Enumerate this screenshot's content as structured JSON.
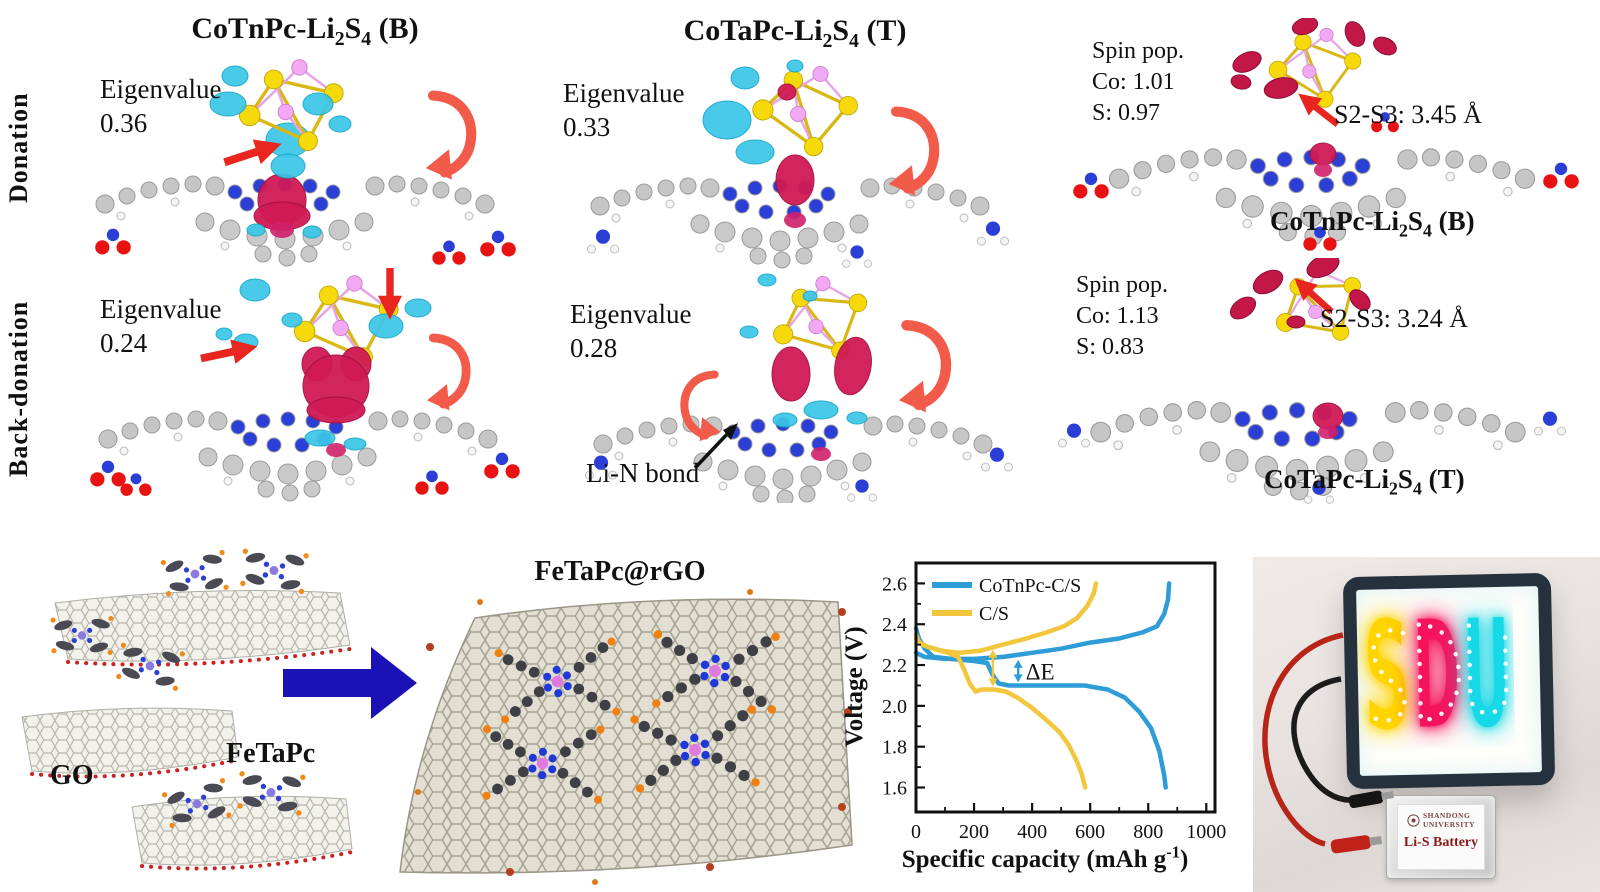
{
  "figure": {
    "rows": {
      "donation": "Donation",
      "back_donation": "Back-donation"
    },
    "panels": {
      "col1_title": "CoTnPc-Li~2~S~4~ (B)",
      "col2_title": "CoTaPc-Li~2~S~4~ (T)",
      "d1": {
        "eigen_label": "Eigenvalue",
        "eigen_value": "0.36"
      },
      "d2": {
        "eigen_label": "Eigenvalue",
        "eigen_value": "0.33"
      },
      "b1": {
        "eigen_label": "Eigenvalue",
        "eigen_value": "0.24"
      },
      "b2": {
        "eigen_label": "Eigenvalue",
        "eigen_value": "0.28",
        "bond_label": "Li-N bond"
      },
      "r1": {
        "spin_title": "Spin pop.",
        "spin_co": "Co: 1.01",
        "spin_s": "S: 0.97",
        "distance": "S2-S3: 3.45 Å",
        "label": "CoTnPc-Li~2~S~4~ (B)"
      },
      "r2": {
        "spin_title": "Spin pop.",
        "spin_co": "Co: 1.13",
        "spin_s": "S: 0.83",
        "distance": "S2-S3: 3.24 Å",
        "label": "CoTaPc-Li~2~S~4~ (T)"
      }
    },
    "synthesis": {
      "go_label": "GO",
      "molecule_label": "FeTaPc",
      "product_label": "FeTaPc@rGO"
    },
    "photo": {
      "led_letters": [
        "S",
        "D",
        "U"
      ],
      "led_colors": [
        "#ffd400",
        "#f5135e",
        "#16d8e6"
      ],
      "battery_univ_line1": "SHANDONG",
      "battery_univ_line2": "UNIVERSITY",
      "battery_label": "Li-S Battery"
    }
  },
  "chart_data": {
    "type": "line",
    "title": "",
    "xlabel": "Specific capacity (mAh g^-1^)",
    "ylabel": "Voltage (V)",
    "xlim": [
      0,
      1030
    ],
    "ylim": [
      1.48,
      2.7
    ],
    "x_ticks": [
      0,
      200,
      400,
      600,
      800,
      1000
    ],
    "y_ticks": [
      1.6,
      1.8,
      2.0,
      2.2,
      2.4,
      2.6
    ],
    "grid": false,
    "legend_position": "top-left",
    "series": [
      {
        "name": "CoTnPc-C/S",
        "color": "#2e9cd6",
        "branches": {
          "charge": [
            [
              0,
              2.26
            ],
            [
              30,
              2.24
            ],
            [
              100,
              2.23
            ],
            [
              200,
              2.23
            ],
            [
              300,
              2.24
            ],
            [
              400,
              2.26
            ],
            [
              500,
              2.28
            ],
            [
              600,
              2.31
            ],
            [
              700,
              2.33
            ],
            [
              780,
              2.36
            ],
            [
              830,
              2.39
            ],
            [
              855,
              2.45
            ],
            [
              868,
              2.52
            ],
            [
              872,
              2.6
            ]
          ],
          "discharge": [
            [
              0,
              2.38
            ],
            [
              10,
              2.33
            ],
            [
              30,
              2.28
            ],
            [
              60,
              2.24
            ],
            [
              120,
              2.23
            ],
            [
              200,
              2.22
            ],
            [
              245,
              2.21
            ],
            [
              265,
              2.15
            ],
            [
              285,
              2.11
            ],
            [
              320,
              2.1
            ],
            [
              450,
              2.1
            ],
            [
              580,
              2.1
            ],
            [
              660,
              2.08
            ],
            [
              720,
              2.04
            ],
            [
              770,
              1.97
            ],
            [
              810,
              1.89
            ],
            [
              838,
              1.78
            ],
            [
              855,
              1.66
            ],
            [
              860,
              1.6
            ]
          ]
        }
      },
      {
        "name": "C/S",
        "color": "#f2c63d",
        "branches": {
          "charge": [
            [
              0,
              2.35
            ],
            [
              10,
              2.31
            ],
            [
              40,
              2.29
            ],
            [
              90,
              2.27
            ],
            [
              150,
              2.26
            ],
            [
              220,
              2.27
            ],
            [
              300,
              2.3
            ],
            [
              380,
              2.33
            ],
            [
              450,
              2.36
            ],
            [
              510,
              2.39
            ],
            [
              555,
              2.43
            ],
            [
              590,
              2.49
            ],
            [
              612,
              2.55
            ],
            [
              620,
              2.6
            ]
          ],
          "discharge": [
            [
              0,
              2.33
            ],
            [
              20,
              2.3
            ],
            [
              60,
              2.28
            ],
            [
              110,
              2.26
            ],
            [
              145,
              2.24
            ],
            [
              165,
              2.18
            ],
            [
              185,
              2.11
            ],
            [
              205,
              2.07
            ],
            [
              225,
              2.08
            ],
            [
              270,
              2.08
            ],
            [
              310,
              2.07
            ],
            [
              350,
              2.04
            ],
            [
              400,
              1.99
            ],
            [
              450,
              1.93
            ],
            [
              495,
              1.87
            ],
            [
              525,
              1.81
            ],
            [
              550,
              1.74
            ],
            [
              570,
              1.67
            ],
            [
              583,
              1.6
            ]
          ]
        }
      }
    ],
    "annotation": {
      "label": "ΔE",
      "label_pos": [
        378,
        2.13
      ],
      "arrows": [
        {
          "x": 265,
          "y_from": 2.28,
          "y_to": 2.09,
          "color": "#f2c63d"
        },
        {
          "x": 352,
          "y_from": 2.23,
          "y_to": 2.11,
          "color": "#2e9cd6"
        }
      ]
    }
  }
}
